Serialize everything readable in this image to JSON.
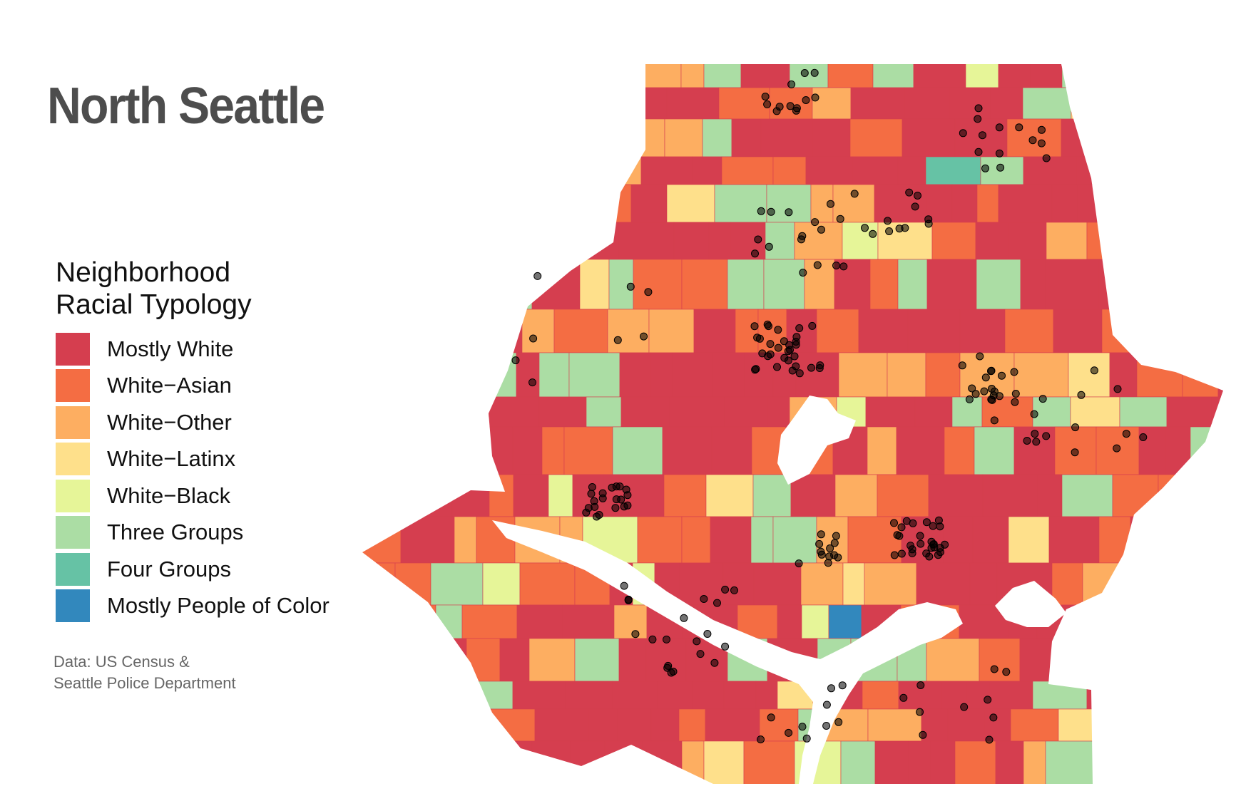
{
  "title": "North Seattle",
  "legend": {
    "title_line1": "Neighborhood",
    "title_line2": "Racial Typology",
    "items": [
      {
        "label": "Mostly White",
        "color": "#d53e4f"
      },
      {
        "label": "White−Asian",
        "color": "#f46d43"
      },
      {
        "label": "White−Other",
        "color": "#fdae61"
      },
      {
        "label": "White−Latinx",
        "color": "#fee08b"
      },
      {
        "label": "White−Black",
        "color": "#e6f598"
      },
      {
        "label": "Three Groups",
        "color": "#abdda4"
      },
      {
        "label": "Four Groups",
        "color": "#66c2a5"
      },
      {
        "label": "Mostly People of Color",
        "color": "#3288bd"
      }
    ]
  },
  "source": {
    "line1": "Data: US Census &",
    "line2": "Seattle Police Department"
  },
  "map": {
    "water_color": "#ffffff",
    "point_color": "#000000"
  }
}
